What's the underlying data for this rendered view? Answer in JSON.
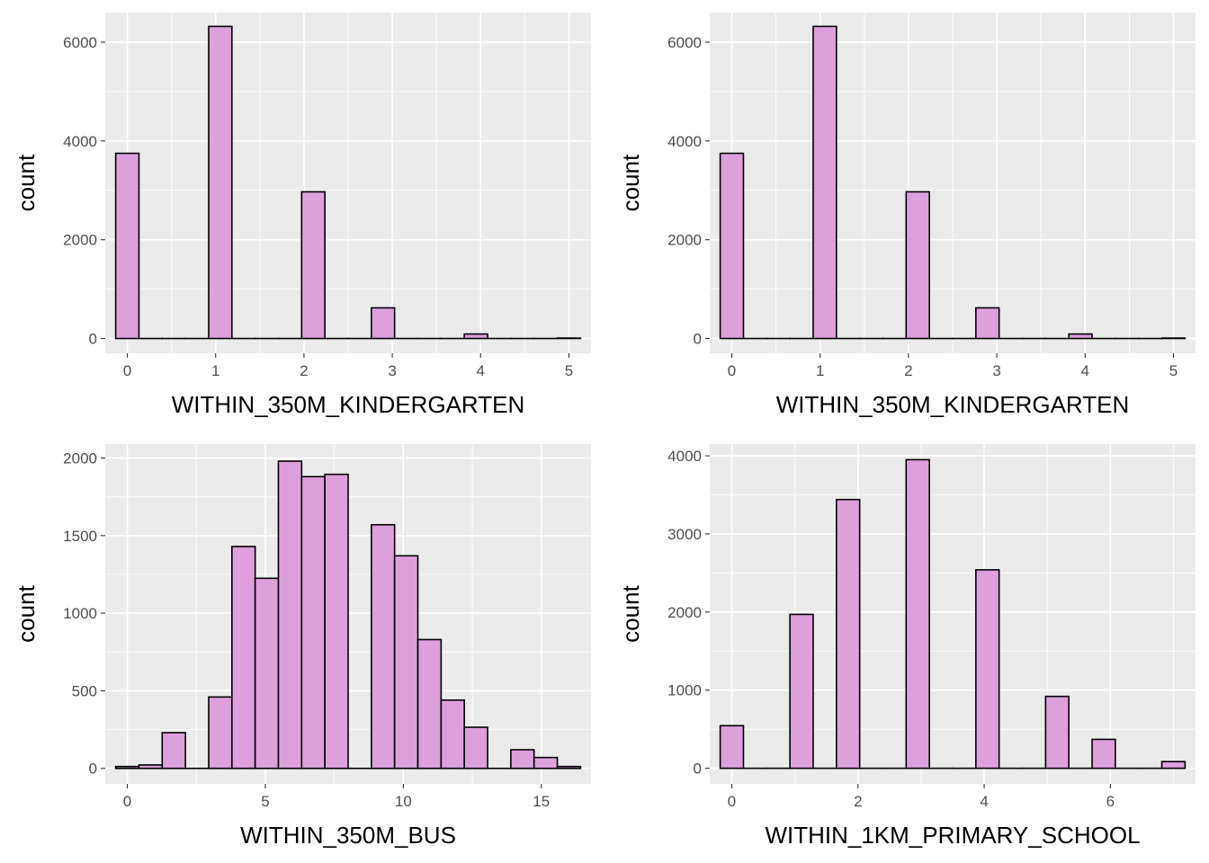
{
  "chart_data": [
    {
      "type": "bar",
      "subtype": "histogram",
      "xlabel": "WITHIN_350M_KINDERGARTEN",
      "ylabel": "count",
      "xlim": [
        -0.25,
        5.25
      ],
      "ylim": [
        -300,
        6600
      ],
      "xticks": [
        0,
        1,
        2,
        3,
        4,
        5
      ],
      "xtick_labels": [
        "0",
        "1",
        "2",
        "3",
        "4",
        "5"
      ],
      "yticks": [
        0,
        2000,
        4000,
        6000
      ],
      "ytick_labels": [
        "0",
        "2000",
        "4000",
        "6000"
      ],
      "bin_width": 0.2632,
      "bins_center": [
        0,
        0.2632,
        0.5263,
        0.7895,
        1.0526,
        1.3158,
        1.5789,
        1.8421,
        2.1053,
        2.3684,
        2.6316,
        2.8947,
        3.1579,
        3.4211,
        3.6842,
        3.9474,
        4.2105,
        4.4737,
        4.7368,
        5.0
      ],
      "values": [
        3750,
        0,
        0,
        0,
        6320,
        0,
        0,
        0,
        2970,
        0,
        0,
        620,
        0,
        0,
        0,
        90,
        0,
        0,
        0,
        8
      ],
      "fill": "#dda0dd",
      "edge": "#000000",
      "grid": true
    },
    {
      "type": "bar",
      "subtype": "histogram",
      "xlabel": "WITHIN_350M_KINDERGARTEN",
      "ylabel": "count",
      "xlim": [
        -0.25,
        5.25
      ],
      "ylim": [
        -300,
        6600
      ],
      "xticks": [
        0,
        1,
        2,
        3,
        4,
        5
      ],
      "xtick_labels": [
        "0",
        "1",
        "2",
        "3",
        "4",
        "5"
      ],
      "yticks": [
        0,
        2000,
        4000,
        6000
      ],
      "ytick_labels": [
        "0",
        "2000",
        "4000",
        "6000"
      ],
      "bin_width": 0.2632,
      "bins_center": [
        0,
        0.2632,
        0.5263,
        0.7895,
        1.0526,
        1.3158,
        1.5789,
        1.8421,
        2.1053,
        2.3684,
        2.6316,
        2.8947,
        3.1579,
        3.4211,
        3.6842,
        3.9474,
        4.2105,
        4.4737,
        4.7368,
        5.0
      ],
      "values": [
        3750,
        0,
        0,
        0,
        6320,
        0,
        0,
        0,
        2970,
        0,
        0,
        620,
        0,
        0,
        0,
        90,
        0,
        0,
        0,
        8
      ],
      "fill": "#dda0dd",
      "edge": "#000000",
      "grid": true
    },
    {
      "type": "bar",
      "subtype": "histogram",
      "xlabel": "WITHIN_350M_BUS",
      "ylabel": "count",
      "xlim": [
        -0.8,
        16.8
      ],
      "ylim": [
        -100,
        2090
      ],
      "xticks": [
        0,
        5,
        10,
        15
      ],
      "xtick_labels": [
        "0",
        "5",
        "10",
        "15"
      ],
      "yticks": [
        0,
        500,
        1000,
        1500,
        2000
      ],
      "ytick_labels": [
        "0",
        "500",
        "1000",
        "1500",
        "2000"
      ],
      "bin_width": 0.8421,
      "bins_center": [
        0,
        0.8421,
        1.6842,
        2.5263,
        3.3684,
        4.2105,
        5.0526,
        5.8947,
        6.7368,
        7.5789,
        8.4211,
        9.2632,
        10.1053,
        10.9474,
        11.7895,
        12.6316,
        13.4737,
        14.3158,
        15.1579,
        16.0
      ],
      "values": [
        12,
        22,
        230,
        0,
        460,
        1430,
        1225,
        1980,
        1880,
        1895,
        0,
        1570,
        1370,
        830,
        440,
        265,
        0,
        120,
        70,
        12
      ],
      "fill": "#dda0dd",
      "edge": "#000000",
      "grid": true
    },
    {
      "type": "bar",
      "subtype": "histogram",
      "xlabel": "WITHIN_1KM_PRIMARY_SCHOOL",
      "ylabel": "count",
      "xlim": [
        -0.35,
        7.35
      ],
      "ylim": [
        -200,
        4150
      ],
      "xticks": [
        0,
        2,
        4,
        6
      ],
      "xtick_labels": [
        "0",
        "2",
        "4",
        "6"
      ],
      "yticks": [
        0,
        1000,
        2000,
        3000,
        4000
      ],
      "ytick_labels": [
        "0",
        "1000",
        "2000",
        "3000",
        "4000"
      ],
      "bin_width": 0.3684,
      "bins_center": [
        0,
        0.3684,
        0.7368,
        1.1053,
        1.4737,
        1.8421,
        2.2105,
        2.5789,
        2.9474,
        3.3158,
        3.6842,
        4.0526,
        4.4211,
        4.7895,
        5.1579,
        5.5263,
        5.8947,
        6.2632,
        6.6316,
        7.0
      ],
      "values": [
        545,
        0,
        0,
        1970,
        0,
        3440,
        0,
        0,
        3950,
        0,
        0,
        2540,
        0,
        0,
        920,
        0,
        370,
        0,
        0,
        85
      ],
      "fill": "#dda0dd",
      "edge": "#000000",
      "grid": true
    }
  ]
}
